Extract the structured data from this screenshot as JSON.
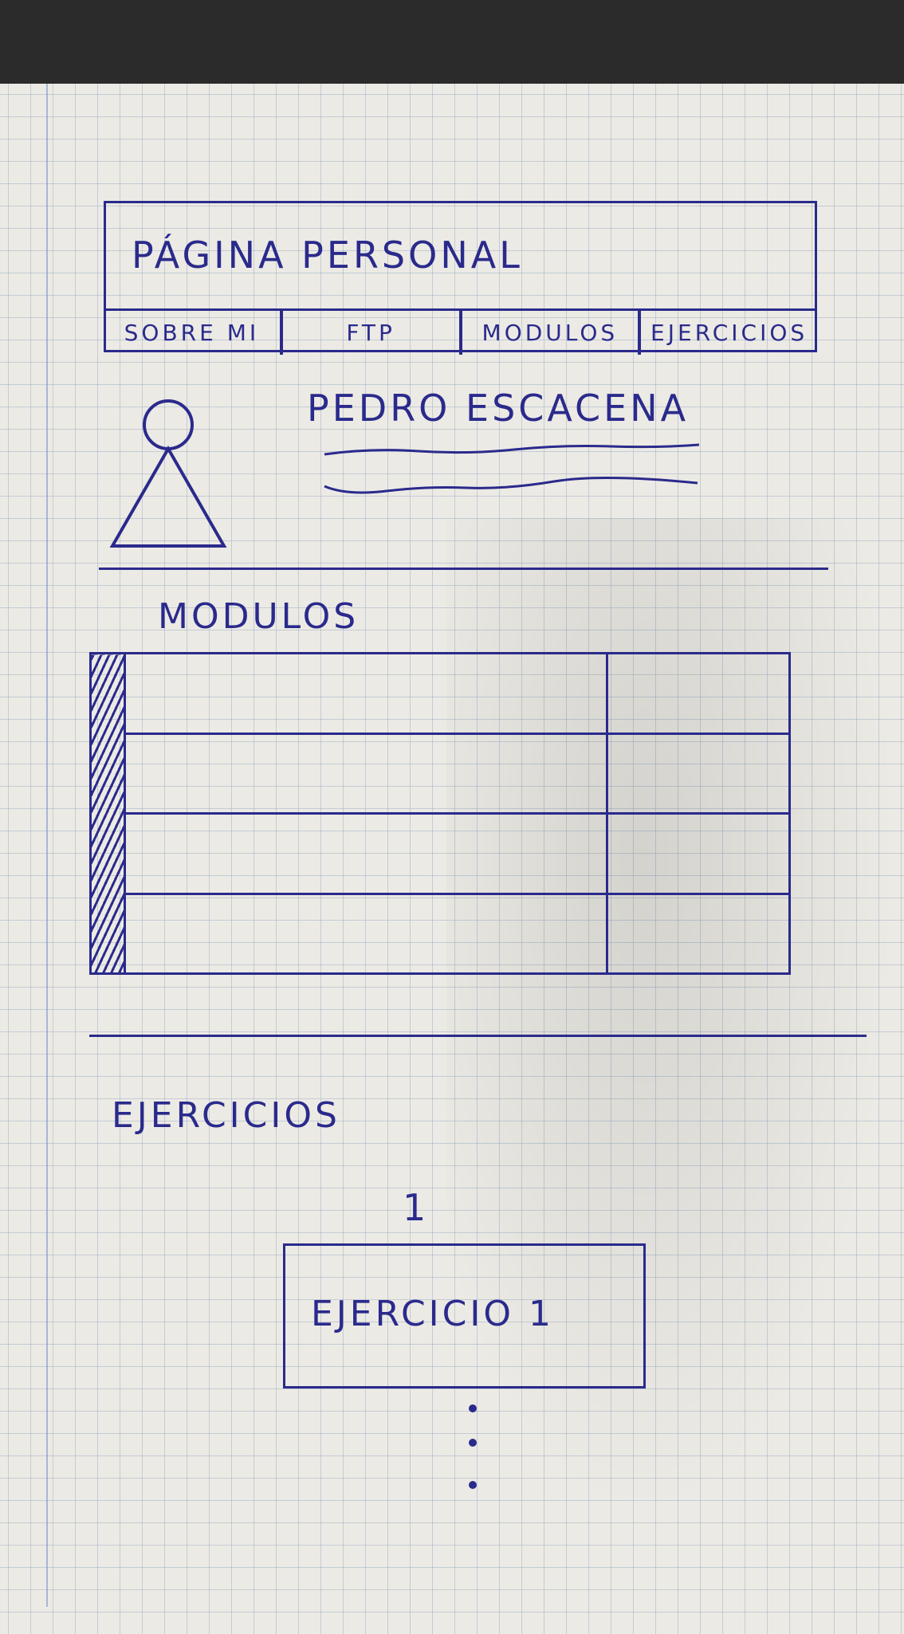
{
  "header": {
    "title": "PÁGINA PERSONAL",
    "nav": [
      "SOBRE MI",
      "FTP",
      "MODULOS",
      "EJERCICIOS"
    ]
  },
  "profile": {
    "name": "PEDRO ESCACENA",
    "avatar_icon": "person-icon"
  },
  "modules": {
    "title": "MODULOS",
    "row_count": 4
  },
  "exercises": {
    "title": "EJERCICIOS",
    "page_number": "1",
    "items": [
      "EJERCICIO 1"
    ]
  },
  "ink_color": "#2a2a8c"
}
